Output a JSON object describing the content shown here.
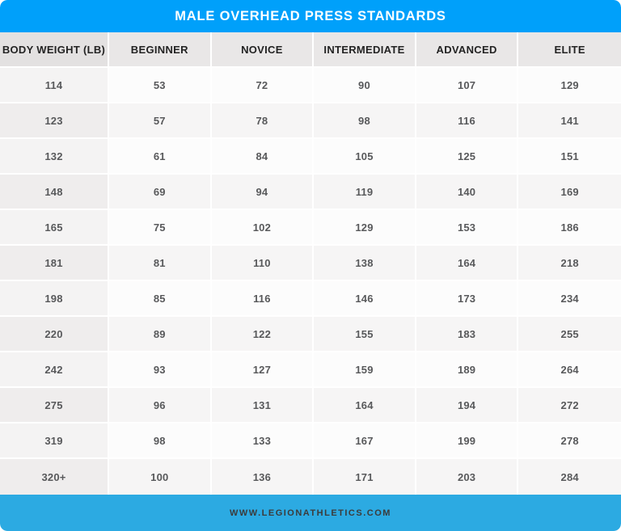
{
  "title": "MALE OVERHEAD PRESS STANDARDS",
  "footer": {
    "website": "WWW.LEGIONATHLETICS.COM"
  },
  "colors": {
    "title_bar": "#00A0FA",
    "title_text": "#FFFFFF",
    "footer_bar": "#2CAAE2",
    "footer_text": "#3B3B3B",
    "header_row_bg": "#E9E7E7",
    "header_row_first_col_bg": "#E3E1E1",
    "row_odd_bg": "#FCFCFC",
    "row_odd_first_col_bg": "#F4F3F3",
    "row_even_bg": "#F6F5F5",
    "row_even_first_col_bg": "#EFEDED",
    "header_text": "#232323",
    "value_text": "#58595B"
  },
  "chart_data": {
    "type": "table",
    "title": "MALE OVERHEAD PRESS STANDARDS",
    "columns": [
      "BODY WEIGHT (LB)",
      "BEGINNER",
      "NOVICE",
      "INTERMEDIATE",
      "ADVANCED",
      "ELITE"
    ],
    "rows": [
      [
        "114",
        "53",
        "72",
        "90",
        "107",
        "129"
      ],
      [
        "123",
        "57",
        "78",
        "98",
        "116",
        "141"
      ],
      [
        "132",
        "61",
        "84",
        "105",
        "125",
        "151"
      ],
      [
        "148",
        "69",
        "94",
        "119",
        "140",
        "169"
      ],
      [
        "165",
        "75",
        "102",
        "129",
        "153",
        "186"
      ],
      [
        "181",
        "81",
        "110",
        "138",
        "164",
        "218"
      ],
      [
        "198",
        "85",
        "116",
        "146",
        "173",
        "234"
      ],
      [
        "220",
        "89",
        "122",
        "155",
        "183",
        "255"
      ],
      [
        "242",
        "93",
        "127",
        "159",
        "189",
        "264"
      ],
      [
        "275",
        "96",
        "131",
        "164",
        "194",
        "272"
      ],
      [
        "319",
        "98",
        "133",
        "167",
        "199",
        "278"
      ],
      [
        "320+",
        "100",
        "136",
        "171",
        "203",
        "284"
      ]
    ]
  }
}
